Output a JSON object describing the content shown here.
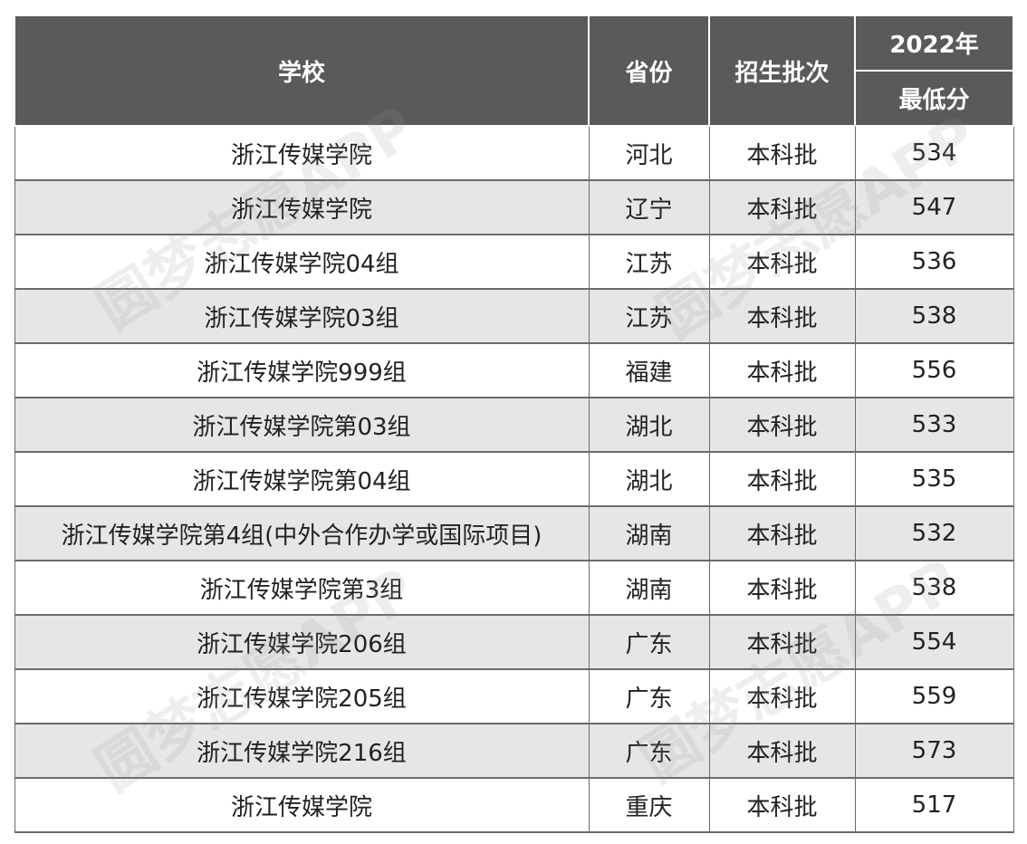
{
  "table": {
    "headers": {
      "school": "学校",
      "province": "省份",
      "batch": "招生批次",
      "year": "2022年",
      "min_score": "最低分"
    },
    "rows": [
      {
        "school": "浙江传媒学院",
        "province": "河北",
        "batch": "本科批",
        "score": "534"
      },
      {
        "school": "浙江传媒学院",
        "province": "辽宁",
        "batch": "本科批",
        "score": "547"
      },
      {
        "school": "浙江传媒学院04组",
        "province": "江苏",
        "batch": "本科批",
        "score": "536"
      },
      {
        "school": "浙江传媒学院03组",
        "province": "江苏",
        "batch": "本科批",
        "score": "538"
      },
      {
        "school": "浙江传媒学院999组",
        "province": "福建",
        "batch": "本科批",
        "score": "556"
      },
      {
        "school": "浙江传媒学院第03组",
        "province": "湖北",
        "batch": "本科批",
        "score": "533"
      },
      {
        "school": "浙江传媒学院第04组",
        "province": "湖北",
        "batch": "本科批",
        "score": "535"
      },
      {
        "school": "浙江传媒学院第4组(中外合作办学或国际项目)",
        "province": "湖南",
        "batch": "本科批",
        "score": "532"
      },
      {
        "school": "浙江传媒学院第3组",
        "province": "湖南",
        "batch": "本科批",
        "score": "538"
      },
      {
        "school": "浙江传媒学院206组",
        "province": "广东",
        "batch": "本科批",
        "score": "554"
      },
      {
        "school": "浙江传媒学院205组",
        "province": "广东",
        "batch": "本科批",
        "score": "559"
      },
      {
        "school": "浙江传媒学院216组",
        "province": "广东",
        "batch": "本科批",
        "score": "573"
      },
      {
        "school": "浙江传媒学院",
        "province": "重庆",
        "batch": "本科批",
        "score": "517"
      }
    ]
  },
  "watermark": {
    "text": "圆梦志愿APP"
  },
  "colors": {
    "header_bg": "#5a5a5a",
    "stripe_bg": "#e6e6e6"
  }
}
